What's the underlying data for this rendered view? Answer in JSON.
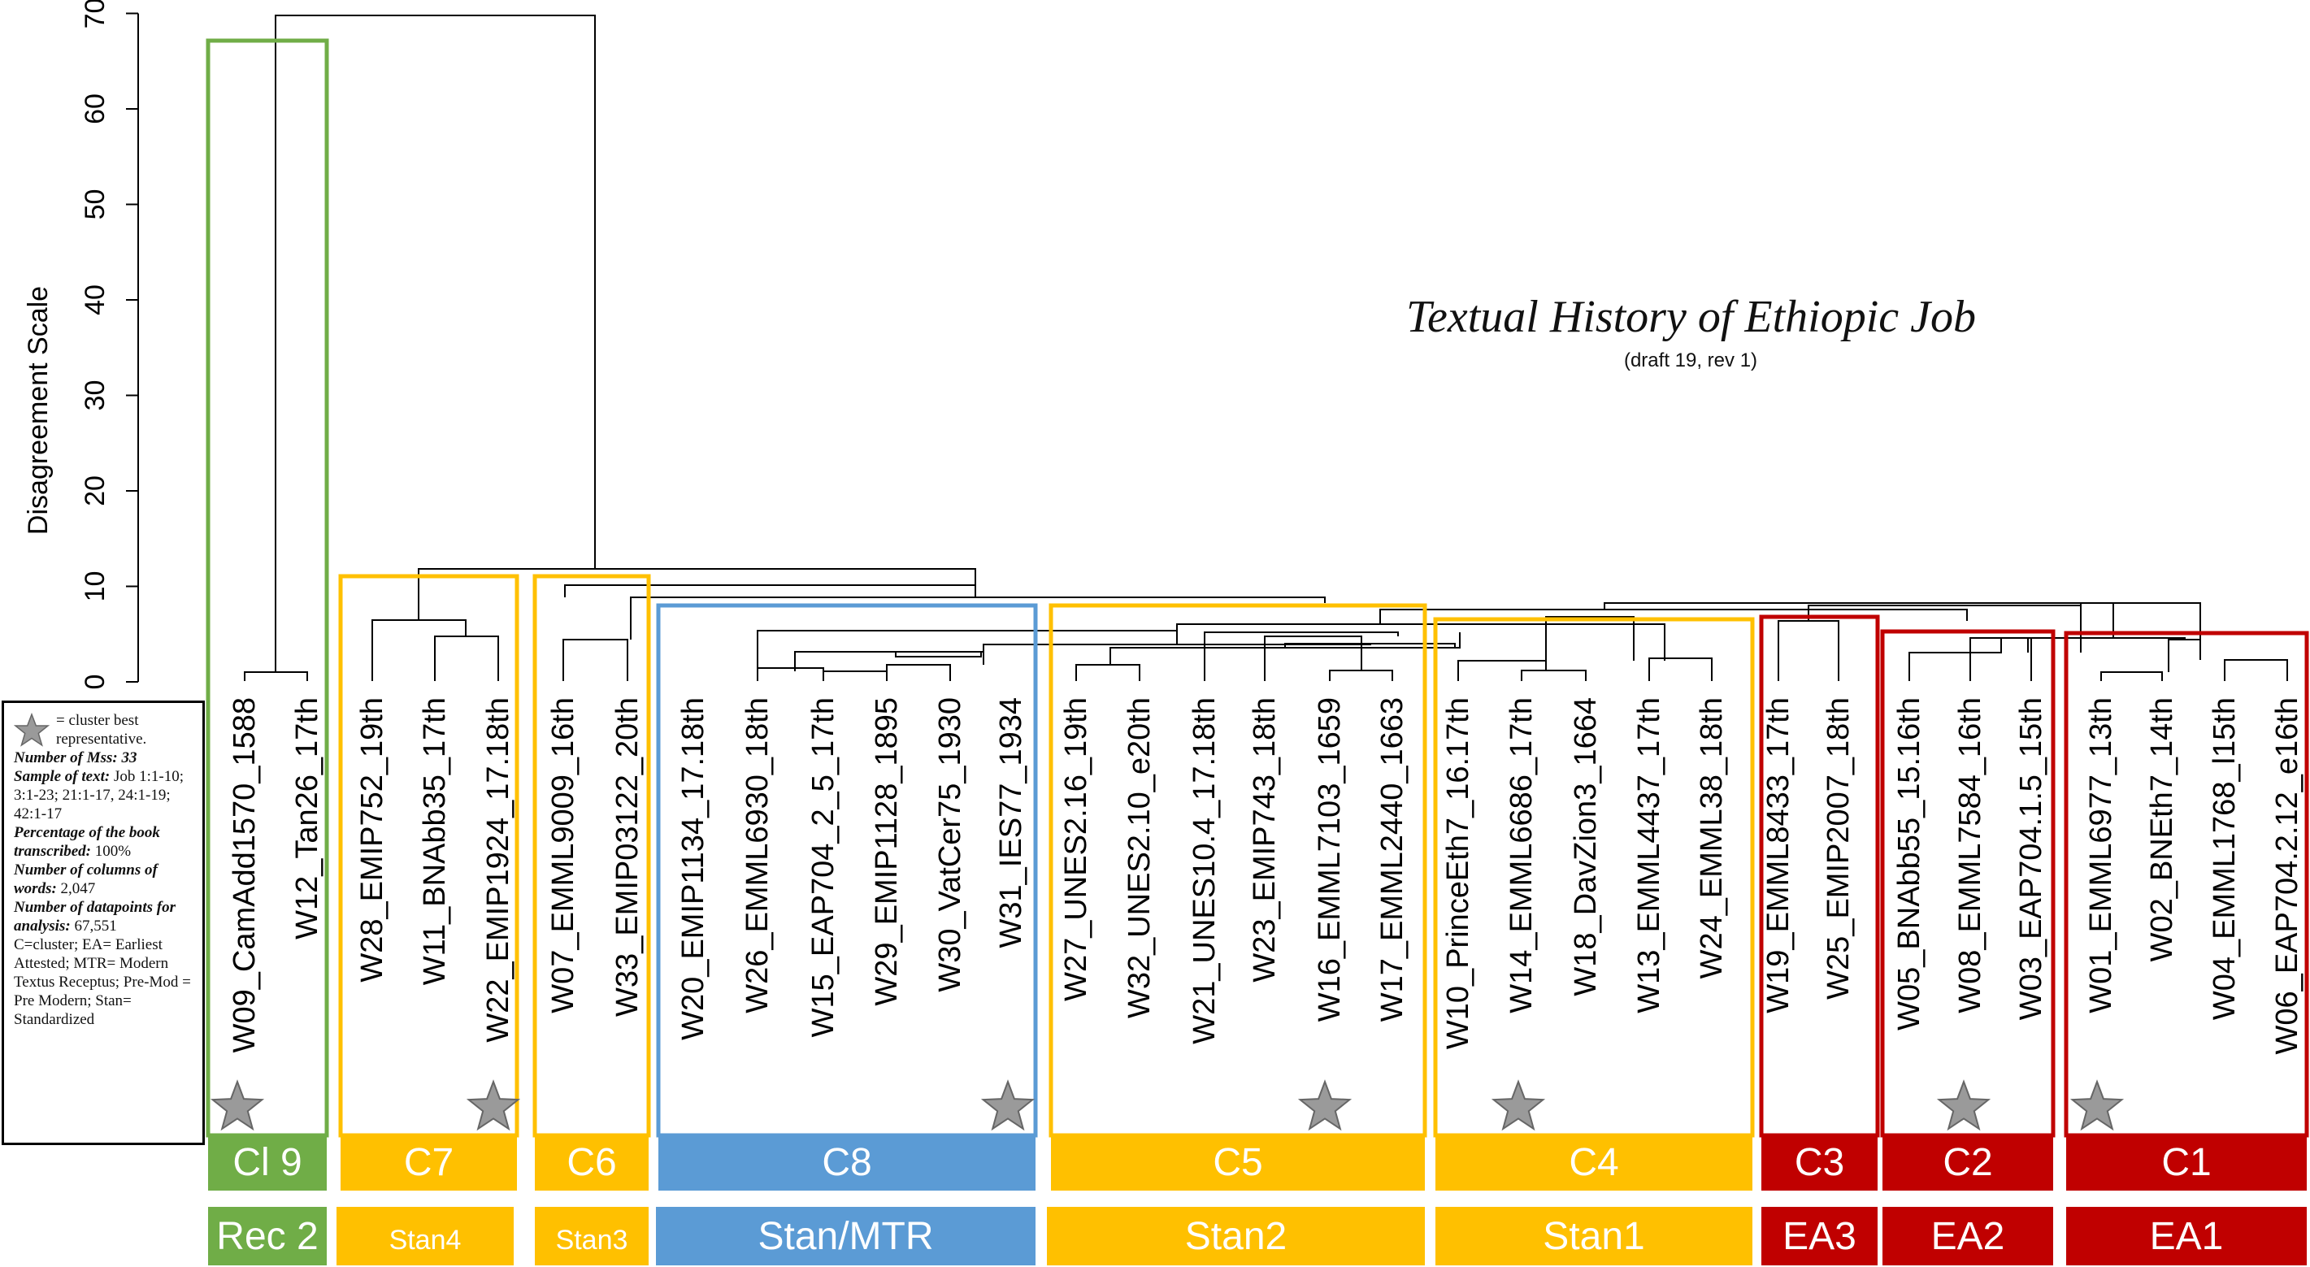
{
  "title": "Textual History of Ethiopic Job",
  "subtitle": "(draft 19, rev 1)",
  "axis": {
    "label": "Disagreement Scale",
    "ticks": [
      "0",
      "10",
      "20",
      "30",
      "40",
      "50",
      "60",
      "70"
    ],
    "range": [
      0,
      70
    ]
  },
  "colors": {
    "green": "#70ad47",
    "yellow": "#ffc000",
    "blue": "#5b9bd5",
    "red": "#c00000",
    "star": "#9a9a9a"
  },
  "leaves": [
    "W09_CamAdd1570_1588",
    "W12_Tan26_17th",
    "W28_EMIP752_19th",
    "W11_BNAbb35_17th",
    "W22_EMIP1924_17.18th",
    "W07_EMML9009_16th",
    "W33_EMIP03122_20th",
    "W20_EMIP1134_17.18th",
    "W26_EMML6930_18th",
    "W15_EAP704_2_5_17th",
    "W29_EMIP1128_1895",
    "W30_VatCer75_1930",
    "W31_IES77_1934",
    "W27_UNES2.16_19th",
    "W32_UNES2.10_e20th",
    "W21_UNES10.4_17.18th",
    "W23_EMIP743_18th",
    "W16_EMML7103_1659",
    "W17_EMML2440_1663",
    "W10_PrinceEth7_16.17th",
    "W14_EMML6686_17th",
    "W18_DavZion3_1664",
    "W13_EMML4437_17th",
    "W24_EMML38_18th",
    "W19_EMML8433_17th",
    "W25_EMIP2007_18th",
    "W05_BNAbb55_15.16th",
    "W08_EMML7584_16th",
    "W03_EAP704.1.5_15th",
    "W01_EMML6977_13th",
    "W02_BNEth7_14th",
    "W04_EMML1768_l15th",
    "W06_EAP704.2.12_e16th"
  ],
  "clusters": [
    {
      "label": "Cl 9",
      "group": "Rec 2",
      "color": "green",
      "star_leaf": 0
    },
    {
      "label": "C7",
      "group": "Stan4",
      "color": "yellow",
      "star_leaf": 4
    },
    {
      "label": "C6",
      "group": "Stan3",
      "color": "yellow",
      "star_leaf": null
    },
    {
      "label": "C8",
      "group": "Stan/MTR",
      "color": "blue",
      "star_leaf": 12
    },
    {
      "label": "C5",
      "group": "Stan2",
      "color": "yellow",
      "star_leaf": 17
    },
    {
      "label": "C4",
      "group": "Stan1",
      "color": "yellow",
      "star_leaf": 20
    },
    {
      "label": "C3",
      "group": "EA3",
      "color": "red",
      "star_leaf": null
    },
    {
      "label": "C2",
      "group": "EA2",
      "color": "red",
      "star_leaf": 27
    },
    {
      "label": "C1",
      "group": "EA1",
      "color": "red",
      "star_leaf": 29
    }
  ],
  "legend": {
    "star_text": "= cluster best representative.",
    "mss_label": "Number of Mss:",
    "mss_value": "33",
    "sample_label": "Sample of text:",
    "sample_value": "Job 1:1-10; 3:1-23; 21:1-17, 24:1-19; 42:1-17",
    "pct_label": "Percentage of the book transcribed:",
    "pct_value": "100%",
    "cols_label": "Number of columns of words:",
    "cols_value": "2,047",
    "dp_label": "Number of datapoints for analysis:",
    "dp_value": "67,551",
    "abbrev": "C=cluster; EA= Earliest Attested; MTR= Modern Textus Receptus; Pre-Mod = Pre Modern; Stan= Standardized"
  }
}
